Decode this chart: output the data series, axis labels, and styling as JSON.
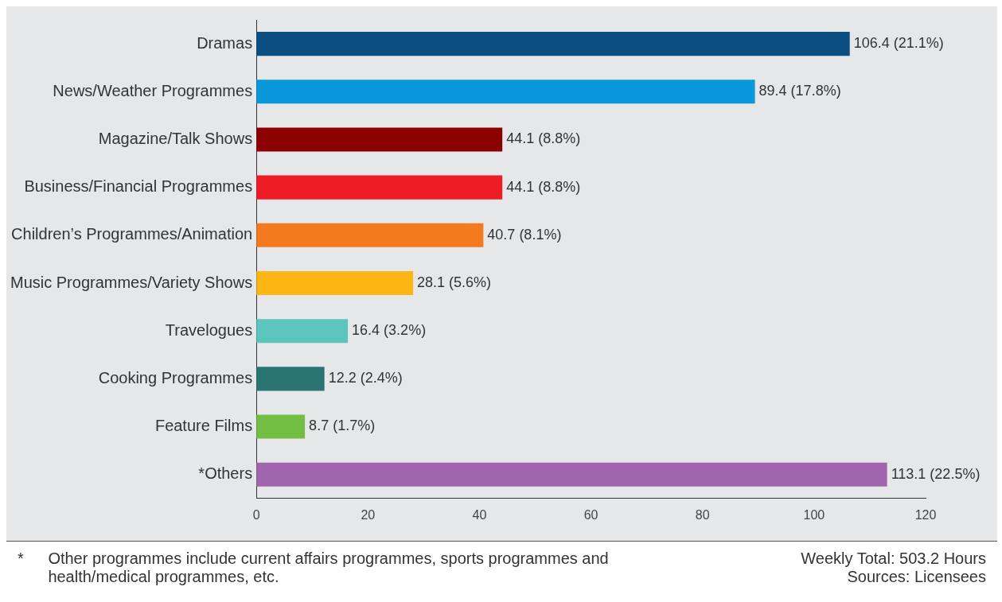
{
  "chart_data": {
    "type": "bar",
    "orientation": "horizontal",
    "categories": [
      "Dramas",
      "News/Weather Programmes",
      "Magazine/Talk Shows",
      "Business/Financial Programmes",
      "Children’s Programmes/Animation",
      "Music Programmes/Variety Shows",
      "Travelogues",
      "Cooking Programmes",
      "Feature Films",
      "*Others"
    ],
    "values": [
      106.4,
      89.4,
      44.1,
      44.1,
      40.7,
      28.1,
      16.4,
      12.2,
      8.7,
      113.1
    ],
    "colors": [
      "#0b4f82",
      "#0a97d9",
      "#8b0000",
      "#ee1c25",
      "#f47a20",
      "#fbb616",
      "#5cc5bd",
      "#2a7571",
      "#72bf44",
      "#a066ad"
    ],
    "value_labels": [
      "106.4 (21.1%)",
      "89.4 (17.8%)",
      "44.1 (8.8%)",
      "44.1 (8.8%)",
      "40.7 (8.1%)",
      "28.1 (5.6%)",
      "16.4 (3.2%)",
      "12.2 (2.4%)",
      "8.7 (1.7%)",
      "113.1 (22.5%)"
    ],
    "xlim": [
      0,
      120
    ],
    "xticks": [
      0,
      20,
      40,
      60,
      80,
      100,
      120
    ],
    "grid": false,
    "legend": false,
    "annotations": [
      "*",
      "Other programmes include current affairs programmes, sports programmes and health/medical programmes, etc.",
      "Weekly Total: 503.2 Hours",
      "Sources: Licensees"
    ]
  }
}
